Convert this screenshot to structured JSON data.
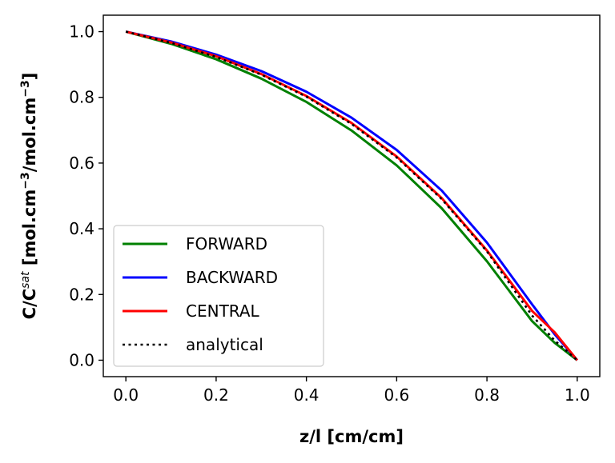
{
  "chart_data": {
    "type": "line",
    "xlabel": "z/l [cm/cm]",
    "ylabel": {
      "prefix": "C/C",
      "sup1": "sat",
      "mid": " [mol.cm",
      "sup2": "−3",
      "mid2": "/mol.cm",
      "sup3": "−3",
      "suffix": "]"
    },
    "xlim": [
      -0.05,
      1.05
    ],
    "ylim": [
      -0.05,
      1.05
    ],
    "xticks": [
      0.0,
      0.2,
      0.4,
      0.6,
      0.8,
      1.0
    ],
    "xtick_labels": [
      "0.0",
      "0.2",
      "0.4",
      "0.6",
      "0.8",
      "1.0"
    ],
    "yticks": [
      0.0,
      0.2,
      0.4,
      0.6,
      0.8,
      1.0
    ],
    "ytick_labels": [
      "0.0",
      "0.2",
      "0.4",
      "0.6",
      "0.8",
      "1.0"
    ],
    "grid": false,
    "legend_position": "lower-left",
    "x": [
      0.0,
      0.1,
      0.2,
      0.3,
      0.4,
      0.5,
      0.6,
      0.7,
      0.8,
      0.9,
      0.95,
      1.0
    ],
    "series": [
      {
        "name": "FORWARD",
        "color": "#008000",
        "style": "solid",
        "values": [
          1.0,
          0.963,
          0.916,
          0.857,
          0.786,
          0.699,
          0.593,
          0.462,
          0.301,
          0.119,
          0.053,
          0.0
        ]
      },
      {
        "name": "BACKWARD",
        "color": "#0000ff",
        "style": "solid",
        "values": [
          1.0,
          0.97,
          0.93,
          0.88,
          0.817,
          0.738,
          0.64,
          0.516,
          0.358,
          0.17,
          0.079,
          0.0
        ]
      },
      {
        "name": "CENTRAL",
        "color": "#ff0000",
        "style": "solid",
        "values": [
          1.0,
          0.967,
          0.925,
          0.871,
          0.804,
          0.722,
          0.62,
          0.493,
          0.334,
          0.15,
          0.085,
          0.0
        ]
      },
      {
        "name": "analytical",
        "color": "#000000",
        "style": "dotted",
        "values": [
          1.0,
          0.966,
          0.923,
          0.869,
          0.802,
          0.719,
          0.617,
          0.49,
          0.331,
          0.136,
          0.06,
          0.0
        ]
      }
    ]
  }
}
